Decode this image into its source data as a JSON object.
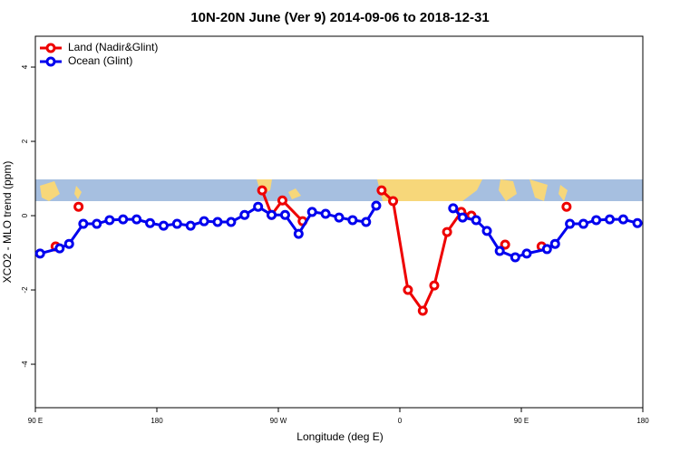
{
  "chart_data": {
    "type": "line",
    "title": "10N-20N June (Ver 9)   2014-09-06 to 2018-12-31",
    "x_label": "Longitude (deg E)",
    "y_label": "XCO2 - MLO trend (ppm)",
    "xlim": [
      90,
      540
    ],
    "xticks": [
      {
        "value": 90,
        "label": "90 E"
      },
      {
        "value": 180,
        "label": "180"
      },
      {
        "value": 270,
        "label": "90 W"
      },
      {
        "value": 360,
        "label": "0"
      },
      {
        "value": 450,
        "label": "90 E"
      },
      {
        "value": 540,
        "label": "180"
      }
    ],
    "ylim": [
      -5.17,
      4.83
    ],
    "yticks": [
      4,
      2,
      0,
      -2,
      -4
    ],
    "legend": "top-left",
    "series": [
      {
        "name": "Land (Nadir&Glint)",
        "color": "#ee0000",
        "x": [
          105,
          null,
          122,
          null,
          258,
          265,
          273,
          288,
          null,
          346.5,
          355,
          366,
          377,
          385.5,
          395,
          405.5,
          413,
          null,
          438,
          null,
          465,
          null,
          483.5
        ],
        "values": [
          -0.83,
          null,
          0.24,
          null,
          0.68,
          0.02,
          0.41,
          -0.15,
          null,
          0.68,
          0.39,
          -2.0,
          -2.56,
          -1.88,
          -0.44,
          0.1,
          0.0,
          null,
          -0.78,
          null,
          -0.83,
          null,
          0.24
        ]
      },
      {
        "name": "Ocean (Glint)",
        "color": "#0000ee",
        "x": [
          93.5,
          108,
          115,
          125.5,
          135.5,
          145,
          155,
          165,
          175,
          185,
          195,
          205,
          215,
          225,
          235,
          245,
          255,
          265,
          275,
          285,
          295,
          305,
          315,
          325,
          335,
          342.5,
          null,
          399.5,
          406.5,
          416.5,
          424.5,
          434,
          445.5,
          454,
          469,
          475,
          486,
          496,
          505.5,
          515.5,
          525.5,
          536
        ],
        "values": [
          -1.02,
          -0.88,
          -0.76,
          -0.22,
          -0.22,
          -0.12,
          -0.1,
          -0.1,
          -0.2,
          -0.27,
          -0.22,
          -0.27,
          -0.15,
          -0.17,
          -0.17,
          0.02,
          0.24,
          0.02,
          0.02,
          -0.49,
          0.1,
          0.05,
          -0.05,
          -0.12,
          -0.17,
          0.27,
          null,
          0.2,
          -0.05,
          -0.12,
          -0.41,
          -0.95,
          -1.12,
          -1.02,
          -0.9,
          -0.76,
          -0.22,
          -0.22,
          -0.12,
          -0.1,
          -0.1,
          -0.2
        ]
      }
    ]
  }
}
